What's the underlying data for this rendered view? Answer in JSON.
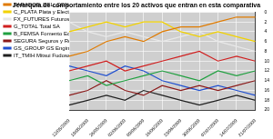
{
  "chart_data": {
    "type": "line",
    "title": "Jerarquía de comportamiento entre los 20 activos que entran en esta comparativa",
    "categories": [
      "12/05/2009",
      "19/05/2009",
      "26/05/2009",
      "02/06/2009",
      "09/06/2009",
      "16/06/2009",
      "23/06/2009",
      "30/06/2009",
      "07/07/2009",
      "14/07/2009",
      "21/07/2009"
    ],
    "series": [
      {
        "name": "PARADOS_DEL_CONSORCIO_DE_TRABAJO",
        "color": "#e07b00",
        "values": [
          9,
          8,
          6,
          5,
          6,
          4,
          3,
          3,
          2,
          1,
          1
        ]
      },
      {
        "name": "C_PLATA Plata y Electric Power Co.",
        "color": "#f2d200",
        "values": [
          4,
          3,
          2,
          3,
          2,
          2,
          4,
          5,
          4,
          5,
          6
        ]
      },
      {
        "name": "FX_FUTURES Futuros de Divisas",
        "color": "#e8e8e8",
        "values": [
          2,
          4,
          5,
          4,
          5,
          6,
          5,
          4,
          6,
          7,
          8
        ]
      },
      {
        "name": "G_TOTAL Total SA",
        "color": "#d02020",
        "values": [
          12,
          11,
          10,
          12,
          11,
          10,
          9,
          8,
          10,
          9,
          10
        ]
      },
      {
        "name": "B_FEMSA Fomento Económico Mexicano",
        "color": "#20a040",
        "values": [
          14,
          13,
          15,
          14,
          13,
          12,
          13,
          14,
          12,
          13,
          12
        ]
      },
      {
        "name": "SEGURA Seguros y Reaseguros",
        "color": "#8b1a1a",
        "values": [
          17,
          16,
          14,
          16,
          17,
          15,
          16,
          15,
          16,
          15,
          14
        ]
      },
      {
        "name": "GS_GROUP GS Engineering",
        "color": "#2050d0",
        "values": [
          11,
          12,
          13,
          11,
          12,
          14,
          15,
          16,
          15,
          16,
          17
        ]
      },
      {
        "name": "IT_TMIH Mitsui Fudosan Co. Ltd",
        "color": "#202020",
        "values": [
          19,
          18,
          17,
          18,
          16,
          17,
          18,
          19,
          18,
          17,
          18
        ]
      }
    ],
    "ylim": [
      20,
      0
    ],
    "yticks": [
      0,
      2,
      4,
      6,
      8,
      10,
      12,
      14,
      16,
      18,
      20
    ],
    "grid": true,
    "legend": "left"
  }
}
